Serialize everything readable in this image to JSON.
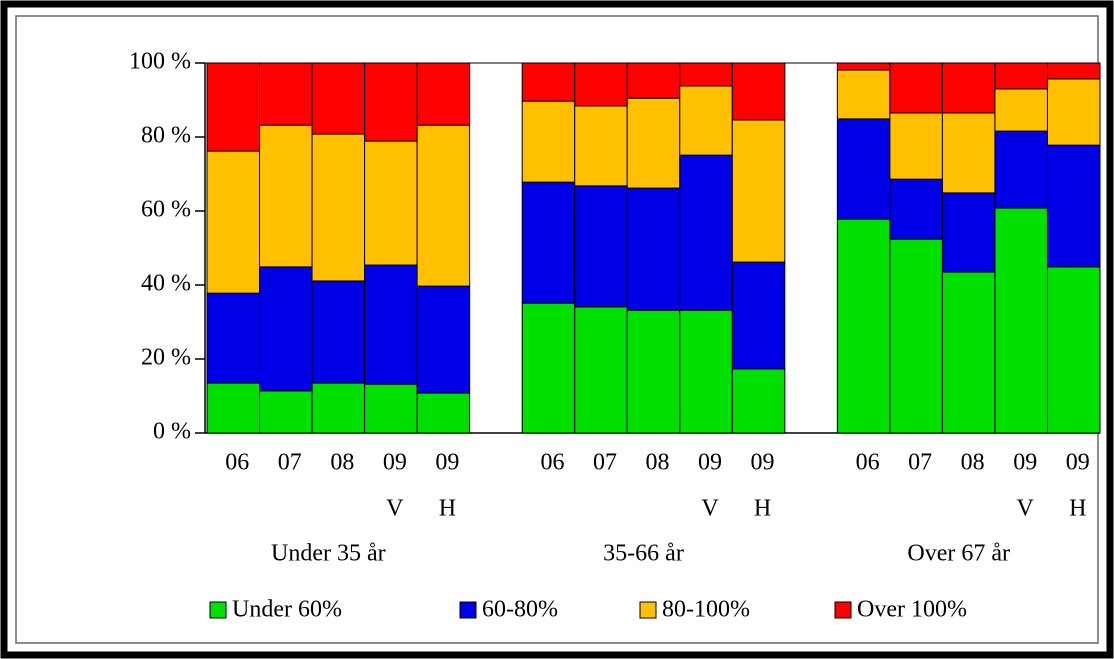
{
  "chart_data": {
    "type": "stacked-bar",
    "groups": [
      {
        "name": "Under 35 år",
        "categories": [
          "06",
          "07",
          "08",
          "09",
          "09"
        ],
        "sublabels": [
          null,
          null,
          null,
          "V",
          "H"
        ]
      },
      {
        "name": "35-66 år",
        "categories": [
          "06",
          "07",
          "08",
          "09",
          "09"
        ],
        "sublabels": [
          null,
          null,
          null,
          "V",
          "H"
        ]
      },
      {
        "name": "Over 67 år",
        "categories": [
          "06",
          "07",
          "08",
          "09",
          "09"
        ],
        "sublabels": [
          null,
          null,
          null,
          "V",
          "H"
        ]
      }
    ],
    "series": [
      {
        "name": "Under 60%",
        "color": "#00e000",
        "values": [
          13.5,
          11.4,
          13.5,
          13.2,
          10.8,
          35.1,
          34.1,
          33.2,
          33.2,
          17.3,
          57.8,
          52.4,
          43.5,
          60.8,
          44.9
        ]
      },
      {
        "name": "60-80%",
        "color": "#0000e6",
        "values": [
          24.3,
          33.5,
          27.6,
          32.2,
          28.9,
          32.7,
          32.7,
          33.0,
          41.9,
          28.9,
          27.1,
          16.2,
          21.4,
          20.8,
          32.9
        ]
      },
      {
        "name": "80-100%",
        "color": "#ffc000",
        "values": [
          38.4,
          38.3,
          39.7,
          33.5,
          43.5,
          21.9,
          21.6,
          24.3,
          18.7,
          38.4,
          13.2,
          17.9,
          21.6,
          11.4,
          17.9
        ]
      },
      {
        "name": "Over 100%",
        "color": "#ff0000",
        "values": [
          23.8,
          16.8,
          19.2,
          21.1,
          16.8,
          10.3,
          11.6,
          9.5,
          6.2,
          15.4,
          1.9,
          13.5,
          13.5,
          7.0,
          4.3
        ]
      }
    ],
    "ylim": [
      0,
      100
    ],
    "yticks": [
      {
        "value": 0,
        "label": "0 %"
      },
      {
        "value": 20,
        "label": "20 %"
      },
      {
        "value": 40,
        "label": "40 %"
      },
      {
        "value": 60,
        "label": "60 %"
      },
      {
        "value": 80,
        "label": "80 %"
      },
      {
        "value": 100,
        "label": "100 %"
      }
    ],
    "legend": "bottom"
  }
}
